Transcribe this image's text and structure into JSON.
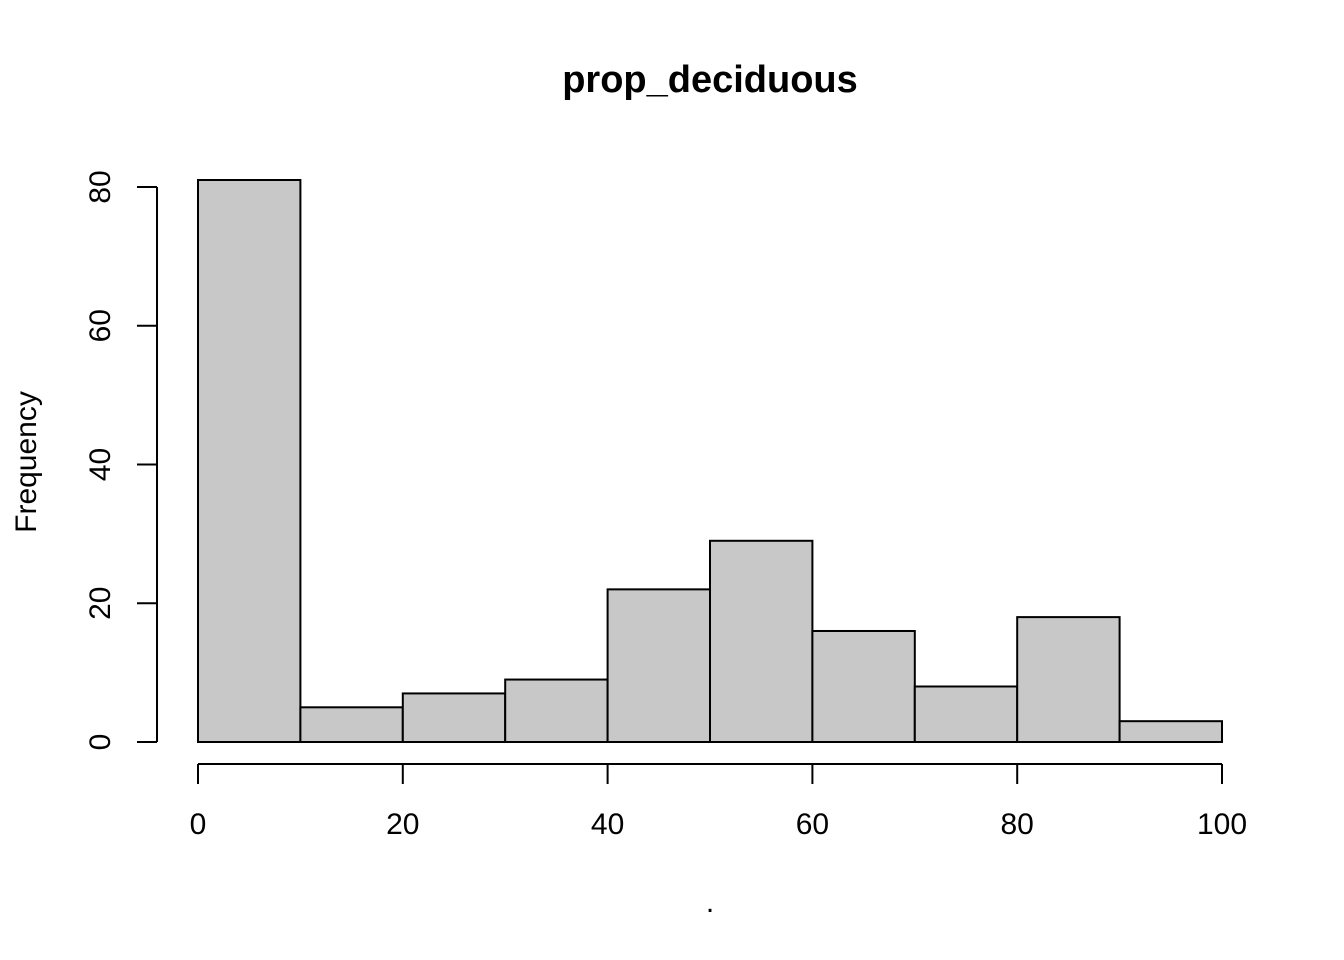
{
  "chart_data": {
    "type": "bar",
    "subtype": "histogram",
    "title": "prop_deciduous",
    "xlabel": ".",
    "ylabel": "Frequency",
    "bins": [
      [
        0,
        10
      ],
      [
        10,
        20
      ],
      [
        20,
        30
      ],
      [
        30,
        40
      ],
      [
        40,
        50
      ],
      [
        50,
        60
      ],
      [
        60,
        70
      ],
      [
        70,
        80
      ],
      [
        80,
        90
      ],
      [
        90,
        100
      ]
    ],
    "values": [
      81,
      5,
      7,
      9,
      22,
      29,
      16,
      8,
      18,
      3
    ],
    "xlim": [
      0,
      100
    ],
    "ylim": [
      0,
      81
    ],
    "x_ticks": [
      0,
      20,
      40,
      60,
      80,
      100
    ],
    "x_tick_labels": [
      "0",
      "20",
      "40",
      "60",
      "80",
      "100"
    ],
    "y_ticks": [
      0,
      20,
      40,
      60,
      80
    ],
    "y_tick_labels": [
      "0",
      "20",
      "40",
      "60",
      "80"
    ],
    "bar_fill": "#c8c8c8",
    "bar_stroke": "#000000",
    "grid": false,
    "legend": "none"
  }
}
